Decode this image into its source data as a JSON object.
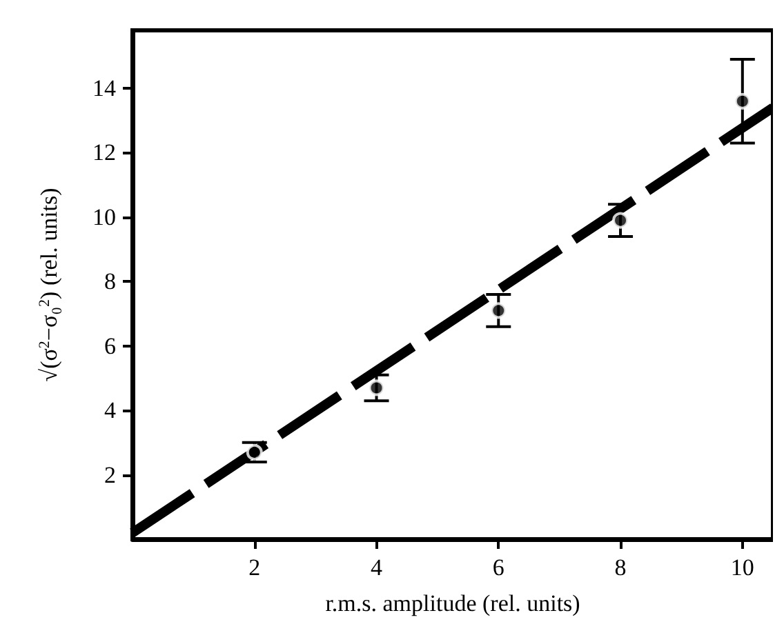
{
  "chart_data": {
    "type": "scatter",
    "xlabel": "r.m.s. amplitude (rel. units)",
    "ylabel": "√(σ$^{2}$−σ₀$^{2}$) (rel. units)",
    "series": [
      {
        "color": "#000000",
        "x": [
          2,
          4,
          6,
          8,
          10
        ],
        "values": [
          2.7,
          4.7,
          7.1,
          9.9,
          13.6
        ],
        "errors": [
          0.3,
          0.4,
          0.5,
          0.5,
          1.3
        ],
        "marker": "circle"
      },
      {
        "type": "line",
        "color": "#000000",
        "x": [
          0,
          10.5
        ],
        "values": [
          0.2,
          13.4
        ],
        "line_style": "dashed",
        "marker": "none"
      }
    ],
    "xlim": [
      0,
      10.5
    ],
    "xticks": [
      2,
      4,
      6,
      8,
      10
    ],
    "ylim": [
      0,
      15.8
    ],
    "yticks": [
      2,
      4,
      6,
      8,
      10,
      12,
      14
    ],
    "grid": false
  }
}
